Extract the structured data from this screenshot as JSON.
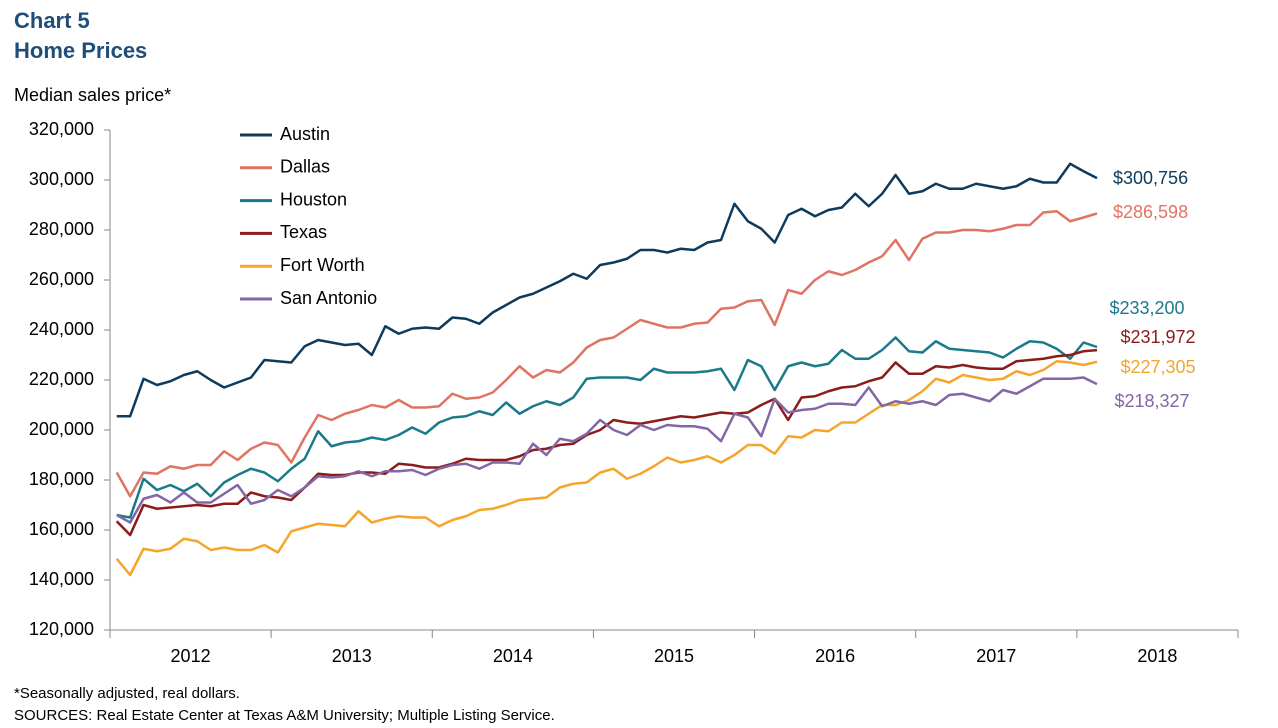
{
  "chart_data": {
    "type": "line",
    "title": "Chart 5",
    "subtitle": "Home Prices",
    "y_label": "Median sales price*",
    "footnote": "*Seasonally adjusted, real dollars.",
    "source": "SOURCES: Real Estate Center at Texas A&M University; Multiple Listing Service.",
    "categories": [
      "2012",
      null,
      null,
      null,
      null,
      null,
      null,
      null,
      null,
      null,
      null,
      null,
      "2013",
      null,
      null,
      null,
      null,
      null,
      null,
      null,
      null,
      null,
      null,
      null,
      "2014",
      null,
      null,
      null,
      null,
      null,
      null,
      null,
      null,
      null,
      null,
      null,
      "2015",
      null,
      null,
      null,
      null,
      null,
      null,
      null,
      null,
      null,
      null,
      null,
      "2016",
      null,
      null,
      null,
      null,
      null,
      null,
      null,
      null,
      null,
      null,
      null,
      "2017",
      null,
      null,
      null,
      null,
      null,
      null,
      null,
      null,
      null,
      null,
      null,
      "2018",
      null
    ],
    "ylim": [
      120000,
      320000
    ],
    "yticks": [
      {
        "value": 120000,
        "label": "120,000"
      },
      {
        "value": 140000,
        "label": "140,000"
      },
      {
        "value": 160000,
        "label": "160,000"
      },
      {
        "value": 180000,
        "label": "180,000"
      },
      {
        "value": 200000,
        "label": "200,000"
      },
      {
        "value": 220000,
        "label": "220,000"
      },
      {
        "value": 240000,
        "label": "240,000"
      },
      {
        "value": 260000,
        "label": "260,000"
      },
      {
        "value": 280000,
        "label": "280,000"
      },
      {
        "value": 300000,
        "label": "300,000"
      },
      {
        "value": 320000,
        "label": "320,000"
      }
    ],
    "legend": "upper left",
    "series": [
      {
        "name": "Austin",
        "color": "#0e3a5c",
        "end_label": "$300,756",
        "values": [
          205500,
          205500,
          220500,
          218000,
          219500,
          222000,
          223500,
          220000,
          217000,
          219000,
          221000,
          228000,
          227500,
          227000,
          233500,
          236000,
          235000,
          234000,
          234500,
          230000,
          241500,
          238500,
          240500,
          241000,
          240500,
          245000,
          244500,
          242500,
          247000,
          250000,
          253000,
          254500,
          257000,
          259500,
          262500,
          260500,
          266000,
          267000,
          268500,
          272000,
          272000,
          271000,
          272500,
          272000,
          275000,
          276000,
          290500,
          283500,
          280500,
          275000,
          286000,
          288500,
          285500,
          288000,
          289000,
          294500,
          289500,
          294500,
          302000,
          294500,
          295500,
          298500,
          296500,
          296500,
          298500,
          297500,
          296500,
          297500,
          300500,
          299000,
          299000,
          306500,
          303500,
          300756
        ]
      },
      {
        "name": "Dallas",
        "color": "#e07462",
        "end_label": "$286,598",
        "values": [
          183000,
          173500,
          183000,
          182500,
          185500,
          184500,
          186000,
          186000,
          191500,
          188000,
          192500,
          195000,
          194000,
          187000,
          197000,
          206000,
          204000,
          206500,
          208000,
          210000,
          209000,
          212000,
          209000,
          209000,
          209500,
          214500,
          212500,
          213000,
          215000,
          220000,
          225500,
          221000,
          224000,
          223000,
          227000,
          233000,
          236000,
          237000,
          240500,
          244000,
          242500,
          241000,
          241000,
          242500,
          243000,
          248500,
          249000,
          251500,
          252000,
          242000,
          256000,
          254500,
          260000,
          263500,
          262000,
          264000,
          267000,
          269500,
          276000,
          268000,
          276500,
          279000,
          279000,
          280000,
          280000,
          279500,
          280500,
          282000,
          282000,
          287000,
          287500,
          283500,
          285000,
          286598
        ]
      },
      {
        "name": "Houston",
        "color": "#1b7a89",
        "end_label": "$233,200",
        "values": [
          166000,
          165000,
          180500,
          176000,
          178000,
          175500,
          178500,
          173500,
          179000,
          182000,
          184500,
          183000,
          179500,
          184500,
          188500,
          199500,
          193500,
          195000,
          195500,
          197000,
          196000,
          198000,
          201000,
          198500,
          203000,
          205000,
          205500,
          207500,
          206000,
          211000,
          206500,
          209500,
          211500,
          210000,
          213000,
          220500,
          221000,
          221000,
          221000,
          220000,
          224500,
          223000,
          223000,
          223000,
          223500,
          224500,
          216000,
          228000,
          225500,
          216000,
          225500,
          227000,
          225500,
          226500,
          232000,
          228500,
          228500,
          232000,
          237000,
          231500,
          231000,
          235500,
          232500,
          232000,
          231500,
          231000,
          229000,
          232500,
          235500,
          235000,
          232500,
          228500,
          235000,
          233200
        ]
      },
      {
        "name": "Texas",
        "color": "#8b1c1c",
        "end_label": "$231,972",
        "values": [
          163500,
          158000,
          170000,
          168500,
          169000,
          169500,
          170000,
          169500,
          170500,
          170500,
          175000,
          173500,
          173000,
          172000,
          177000,
          182500,
          182000,
          182000,
          183000,
          183000,
          182500,
          186500,
          186000,
          185000,
          185000,
          186500,
          188500,
          188000,
          188000,
          188000,
          189500,
          192000,
          192500,
          194000,
          194500,
          198000,
          200000,
          204000,
          203000,
          202500,
          203500,
          204500,
          205500,
          205000,
          206000,
          207000,
          206500,
          207000,
          210000,
          212500,
          204000,
          213000,
          213500,
          215500,
          217000,
          217500,
          219500,
          221000,
          227000,
          222500,
          222500,
          225500,
          225000,
          226000,
          225000,
          224500,
          224500,
          227500,
          228000,
          228500,
          229500,
          230000,
          231500,
          231972
        ]
      },
      {
        "name": "Fort Worth",
        "color": "#f5a52a",
        "end_label": "$227,305",
        "values": [
          148500,
          142000,
          152500,
          151500,
          152500,
          156500,
          155500,
          152000,
          153000,
          152000,
          152000,
          154000,
          151000,
          159500,
          161000,
          162500,
          162000,
          161500,
          167500,
          163000,
          164500,
          165500,
          165000,
          165000,
          161500,
          164000,
          165500,
          168000,
          168500,
          170000,
          172000,
          172500,
          173000,
          177000,
          178500,
          179000,
          183000,
          184500,
          180500,
          182500,
          185500,
          189000,
          187000,
          188000,
          189500,
          187000,
          190000,
          194000,
          194000,
          190500,
          197500,
          197000,
          200000,
          199500,
          203000,
          203000,
          206500,
          210000,
          210000,
          212000,
          215500,
          220500,
          219000,
          222000,
          221000,
          220000,
          220500,
          223500,
          222000,
          224000,
          227500,
          227000,
          226000,
          227305
        ]
      },
      {
        "name": "San Antonio",
        "color": "#8466a6",
        "end_label": "$218,327",
        "values": [
          166000,
          163000,
          172500,
          174000,
          171000,
          175000,
          171000,
          171000,
          174500,
          178000,
          170500,
          172000,
          176000,
          173500,
          177000,
          181500,
          181000,
          181500,
          183500,
          181500,
          183500,
          183500,
          184000,
          182000,
          184500,
          186000,
          186500,
          184500,
          187000,
          187000,
          186500,
          194500,
          190000,
          196500,
          195500,
          198500,
          204000,
          200000,
          198000,
          202000,
          200000,
          202000,
          201500,
          201500,
          200500,
          195500,
          206500,
          205000,
          197500,
          212500,
          207000,
          208000,
          208500,
          210500,
          210500,
          210000,
          217000,
          209500,
          211500,
          210500,
          211500,
          210000,
          214000,
          214500,
          213000,
          211500,
          216000,
          214500,
          217500,
          220500,
          220500,
          220500,
          221000,
          218327
        ]
      }
    ]
  }
}
